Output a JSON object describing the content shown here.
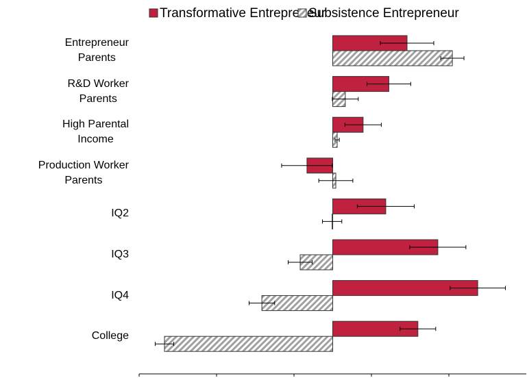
{
  "chart_data": {
    "type": "bar",
    "orientation": "horizontal",
    "categories": [
      "Entrepreneur\nParents",
      "R&D Worker\nParents",
      "High Parental\nIncome",
      "Production Worker\nParents",
      "IQ2",
      "IQ3",
      "IQ4",
      "College"
    ],
    "series": [
      {
        "name": "Transformative Entrepreneur",
        "color": "#c0213f",
        "values": [
          0.384,
          0.29,
          0.157,
          -0.133,
          0.274,
          0.543,
          0.749,
          0.44
        ],
        "errors": [
          0.138,
          0.113,
          0.094,
          0.131,
          0.147,
          0.145,
          0.143,
          0.092
        ]
      },
      {
        "name": "Subsistence Entrepreneur",
        "color": "#a0a0a0",
        "hatch": true,
        "values": [
          0.618,
          0.065,
          0.023,
          0.016,
          -0.003,
          -0.168,
          -0.366,
          -0.869
        ],
        "errors": [
          0.06,
          0.067,
          0.011,
          0.088,
          0.05,
          0.062,
          0.066,
          0.048
        ]
      }
    ],
    "xlim": [
      -1,
      1
    ],
    "xticks": [
      -1,
      -0.6,
      -0.2,
      0.2,
      0.6
    ],
    "legend": "top"
  }
}
